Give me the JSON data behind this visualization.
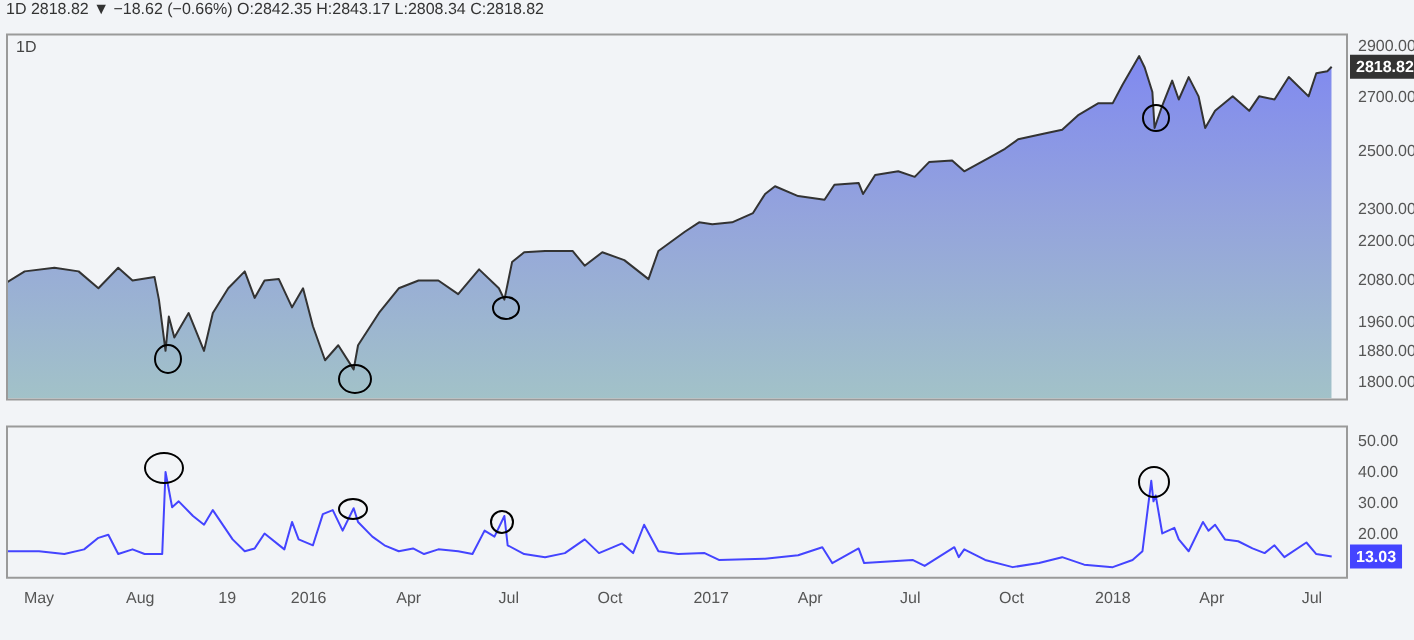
{
  "chart_data": [
    {
      "type": "area",
      "title": "1D",
      "subtitle": "1D 2818.82 ▼ −18.62 (−0.66%) O:2842.35 H:2843.17 L:2808.34 C:2818.82",
      "log": true,
      "tick_labels": "y",
      "legend": false,
      "grid": false,
      "xlim": [
        "2015-04-01",
        "2018-08-01"
      ],
      "ylim": [
        1760,
        2955
      ],
      "yticks": [
        {
          "value": 1800,
          "label": "1800.00"
        },
        {
          "value": 1880,
          "label": "1880.00"
        },
        {
          "value": 1960,
          "label": "1960.00"
        },
        {
          "value": 2080,
          "label": "2080.00"
        },
        {
          "value": 2200,
          "label": "2200.00"
        },
        {
          "value": 2300,
          "label": "2300.00"
        },
        {
          "value": 2500,
          "label": "2500.00"
        },
        {
          "value": 2700,
          "label": "2700.00"
        },
        {
          "value": 2900,
          "label": "2900.00"
        }
      ],
      "series": [
        {
          "color": "#333333",
          "x": [
            "2015-04-01",
            "2015-04-18",
            "2015-05-15",
            "2015-06-06",
            "2015-06-24",
            "2015-07-12",
            "2015-07-25",
            "2015-08-14",
            "2015-08-18",
            "2015-08-24",
            "2015-08-27",
            "2015-09-01",
            "2015-09-14",
            "2015-09-28",
            "2015-10-06",
            "2015-10-20",
            "2015-11-04",
            "2015-11-13",
            "2015-11-22",
            "2015-12-05",
            "2015-12-17",
            "2015-12-27",
            "2016-01-05",
            "2016-01-16",
            "2016-01-28",
            "2016-02-11",
            "2016-02-15",
            "2016-03-05",
            "2016-03-23",
            "2016-04-10",
            "2016-04-28",
            "2016-05-16",
            "2016-06-04",
            "2016-06-22",
            "2016-06-27",
            "2016-07-04",
            "2016-07-15",
            "2016-08-03",
            "2016-08-28",
            "2016-09-08",
            "2016-09-24",
            "2016-10-14",
            "2016-11-05",
            "2016-11-14",
            "2016-12-08",
            "2016-12-21",
            "2017-01-02",
            "2017-01-20",
            "2017-02-08",
            "2017-02-19",
            "2017-02-28",
            "2017-03-21",
            "2017-04-14",
            "2017-04-23",
            "2017-05-15",
            "2017-05-19",
            "2017-05-30",
            "2017-06-20",
            "2017-07-05",
            "2017-07-18",
            "2017-08-08",
            "2017-08-19",
            "2017-09-10",
            "2017-09-25",
            "2017-10-07",
            "2017-10-31",
            "2017-11-16",
            "2017-12-01",
            "2017-12-19",
            "2018-01-01",
            "2018-01-10",
            "2018-01-25",
            "2018-01-30",
            "2018-02-06",
            "2018-02-08",
            "2018-02-15",
            "2018-02-24",
            "2018-03-02",
            "2018-03-11",
            "2018-03-20",
            "2018-03-26",
            "2018-04-04",
            "2018-04-20",
            "2018-05-05",
            "2018-05-14",
            "2018-05-28",
            "2018-06-10",
            "2018-06-28",
            "2018-07-05",
            "2018-07-15",
            "2018-07-19"
          ],
          "values": [
            2074,
            2108,
            2119,
            2108,
            2058,
            2119,
            2081,
            2091,
            2025,
            1883,
            1977,
            1919,
            1987,
            1883,
            1987,
            2058,
            2108,
            2030,
            2081,
            2085,
            2003,
            2058,
            1950,
            1858,
            1898,
            1834,
            1898,
            1987,
            2058,
            2081,
            2081,
            2041,
            2114,
            2058,
            2025,
            2136,
            2166,
            2170,
            2170,
            2125,
            2166,
            2142,
            2085,
            2170,
            2230,
            2260,
            2254,
            2260,
            2290,
            2353,
            2379,
            2346,
            2334,
            2384,
            2390,
            2353,
            2417,
            2430,
            2411,
            2462,
            2468,
            2430,
            2476,
            2509,
            2543,
            2564,
            2578,
            2633,
            2677,
            2677,
            2749,
            2862,
            2816,
            2720,
            2584,
            2668,
            2764,
            2691,
            2778,
            2703,
            2584,
            2648,
            2703,
            2648,
            2703,
            2691,
            2778,
            2703,
            2793,
            2801,
            2818.82
          ],
          "value_labels": [
            null,
            null,
            null,
            null,
            null,
            null,
            null,
            null,
            null,
            null,
            null,
            null,
            null,
            null,
            null,
            null,
            null,
            null,
            null,
            null,
            null,
            null,
            null,
            null,
            null,
            null,
            null,
            null,
            null,
            null,
            null,
            null,
            null,
            null,
            null,
            null,
            null,
            null,
            null,
            null,
            null,
            null,
            null,
            null,
            null,
            null,
            null,
            null,
            null,
            null,
            null,
            null,
            null,
            null,
            null,
            null,
            null,
            null,
            null,
            null,
            null,
            null,
            null,
            null,
            null,
            null,
            null,
            null,
            null,
            null,
            null,
            null,
            null,
            null,
            null,
            null,
            null,
            null,
            null,
            null,
            null,
            null,
            null,
            null,
            null,
            null,
            null,
            null,
            null,
            null,
            "2818.82"
          ]
        }
      ]
    },
    {
      "type": "line",
      "legend": false,
      "grid": false,
      "xlim": [
        "2015-04-01",
        "2018-08-01"
      ],
      "xticks": [
        {
          "value": "2015-05-01",
          "label": "May"
        },
        {
          "value": "2015-08-01",
          "label": "Aug"
        },
        {
          "value": "2015-10-19",
          "label": "19"
        },
        {
          "value": "2016-01-01",
          "label": "2016"
        },
        {
          "value": "2016-04-01",
          "label": "Apr"
        },
        {
          "value": "2016-07-01",
          "label": "Jul"
        },
        {
          "value": "2016-10-01",
          "label": "Oct"
        },
        {
          "value": "2017-01-01",
          "label": "2017"
        },
        {
          "value": "2017-04-01",
          "label": "Apr"
        },
        {
          "value": "2017-07-01",
          "label": "Jul"
        },
        {
          "value": "2017-10-01",
          "label": "Oct"
        },
        {
          "value": "2018-01-01",
          "label": "2018"
        },
        {
          "value": "2018-04-01",
          "label": "Apr"
        },
        {
          "value": "2018-07-01",
          "label": "Jul"
        }
      ],
      "ylim": [
        6.5,
        55
      ],
      "yticks": [
        {
          "value": 20,
          "label": "20.00"
        },
        {
          "value": 30,
          "label": "30.00"
        },
        {
          "value": 40,
          "label": "40.00"
        },
        {
          "value": 50,
          "label": "50.00"
        }
      ],
      "series": [
        {
          "color": "#4444ff",
          "x": [
            "2015-04-01",
            "2015-05-01",
            "2015-05-24",
            "2015-06-11",
            "2015-06-24",
            "2015-07-03",
            "2015-07-12",
            "2015-07-25",
            "2015-08-05",
            "2015-08-14",
            "2015-08-21",
            "2015-08-24",
            "2015-08-30",
            "2015-09-05",
            "2015-09-18",
            "2015-09-28",
            "2015-10-06",
            "2015-10-24",
            "2015-11-04",
            "2015-11-13",
            "2015-11-22",
            "2015-12-10",
            "2015-12-17",
            "2015-12-23",
            "2016-01-05",
            "2016-01-14",
            "2016-01-23",
            "2016-02-01",
            "2016-02-11",
            "2016-02-15",
            "2016-02-28",
            "2016-03-10",
            "2016-03-23",
            "2016-04-05",
            "2016-04-15",
            "2016-04-28",
            "2016-05-16",
            "2016-05-29",
            "2016-06-09",
            "2016-06-18",
            "2016-06-27",
            "2016-06-30",
            "2016-07-15",
            "2016-08-03",
            "2016-08-21",
            "2016-09-08",
            "2016-09-21",
            "2016-10-12",
            "2016-10-22",
            "2016-11-01",
            "2016-11-14",
            "2016-12-02",
            "2016-12-26",
            "2017-01-08",
            "2017-02-19",
            "2017-03-21",
            "2017-04-12",
            "2017-04-21",
            "2017-05-15",
            "2017-05-20",
            "2017-07-03",
            "2017-07-14",
            "2017-08-10",
            "2017-08-14",
            "2017-08-19",
            "2017-09-07",
            "2017-10-02",
            "2017-10-26",
            "2017-11-16",
            "2017-12-06",
            "2018-01-01",
            "2018-01-19",
            "2018-01-28",
            "2018-02-05",
            "2018-02-07",
            "2018-02-09",
            "2018-02-15",
            "2018-02-26",
            "2018-03-02",
            "2018-03-11",
            "2018-03-24",
            "2018-03-29",
            "2018-04-04",
            "2018-04-13",
            "2018-04-25",
            "2018-05-08",
            "2018-05-19",
            "2018-05-28",
            "2018-06-06",
            "2018-06-26",
            "2018-07-05",
            "2018-07-19"
          ],
          "values": [
            14.7,
            14.7,
            13.8,
            15.3,
            19,
            20,
            13.8,
            15.3,
            13.8,
            13.8,
            13.8,
            40.1,
            28.8,
            30.7,
            26,
            23.2,
            27.9,
            18.5,
            14.7,
            15.6,
            20.4,
            15.3,
            24.1,
            18.5,
            16.6,
            26.6,
            27.9,
            21.3,
            28.5,
            24.1,
            19.4,
            16.6,
            14.7,
            15.6,
            13.8,
            15.3,
            14.7,
            13.8,
            21.3,
            19.4,
            26,
            16.6,
            13.8,
            12.8,
            14.1,
            18.5,
            14.1,
            17.2,
            14.1,
            23.2,
            14.7,
            13.8,
            14.1,
            11.9,
            12.3,
            13.4,
            16,
            10.9,
            15.6,
            10.9,
            11.9,
            10,
            16,
            12.8,
            15.3,
            11.9,
            9.6,
            10.9,
            12.8,
            10.4,
            9.6,
            11.9,
            14.7,
            37.3,
            30.7,
            32.6,
            20.4,
            22.2,
            18.5,
            14.7,
            24.1,
            21.3,
            23.2,
            18.5,
            17.9,
            15.6,
            14.1,
            16.6,
            12.8,
            17.5,
            13.8,
            13.03
          ],
          "value_labels": [
            null,
            null,
            null,
            null,
            null,
            null,
            null,
            null,
            null,
            null,
            null,
            null,
            null,
            null,
            null,
            null,
            null,
            null,
            null,
            null,
            null,
            null,
            null,
            null,
            null,
            null,
            null,
            null,
            null,
            null,
            null,
            null,
            null,
            null,
            null,
            null,
            null,
            null,
            null,
            null,
            null,
            null,
            null,
            null,
            null,
            null,
            null,
            null,
            null,
            null,
            null,
            null,
            null,
            null,
            null,
            null,
            null,
            null,
            null,
            null,
            null,
            null,
            null,
            null,
            null,
            null,
            null,
            null,
            null,
            null,
            null,
            null,
            null,
            null,
            null,
            null,
            null,
            null,
            null,
            null,
            null,
            null,
            null,
            null,
            null,
            null,
            null,
            null,
            null,
            null,
            null,
            "13.03"
          ]
        }
      ]
    }
  ]
}
